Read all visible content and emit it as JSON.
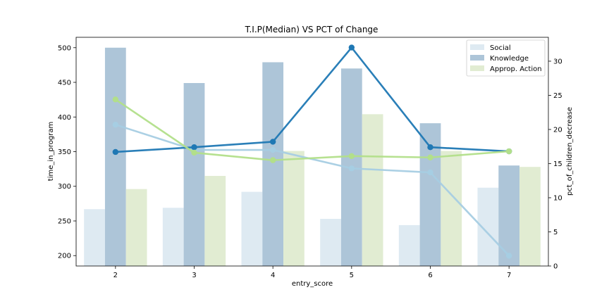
{
  "chart_data": {
    "type": "bar",
    "title": "T.I.P(Median) VS PCT of Change",
    "xlabel": "entry_score",
    "ylabel": "time_in_program",
    "y2label": "pct_of_children_decrease",
    "categories": [
      "2",
      "3",
      "4",
      "5",
      "6",
      "7"
    ],
    "ylim": [
      185,
      515
    ],
    "yticks": [
      200,
      250,
      300,
      350,
      400,
      450,
      500
    ],
    "y2lim": [
      0,
      33.5
    ],
    "y2ticks": [
      0,
      5,
      10,
      15,
      20,
      25,
      30
    ],
    "bar_series": [
      {
        "name": "Social",
        "color": "#deeaf2",
        "values": [
          267,
          269,
          292,
          253,
          244,
          298
        ]
      },
      {
        "name": "Knowledge",
        "color": "#adc5d8",
        "values": [
          500,
          449,
          479,
          470,
          391,
          330
        ]
      },
      {
        "name": "Approp. Action",
        "color": "#e1ecd2",
        "values": [
          296,
          315,
          351,
          404,
          351,
          328
        ]
      }
    ],
    "line_series": [
      {
        "color": "#a6cee3",
        "values": [
          20.7,
          17.0,
          17.0,
          14.3,
          13.7,
          1.5
        ]
      },
      {
        "color": "#1f78b4",
        "values": [
          16.7,
          17.4,
          18.2,
          32.0,
          17.4,
          16.8
        ]
      },
      {
        "color": "#b2df8a",
        "values": [
          24.4,
          16.6,
          15.5,
          16.1,
          15.9,
          16.8
        ]
      }
    ],
    "legend_position": "top-right"
  }
}
